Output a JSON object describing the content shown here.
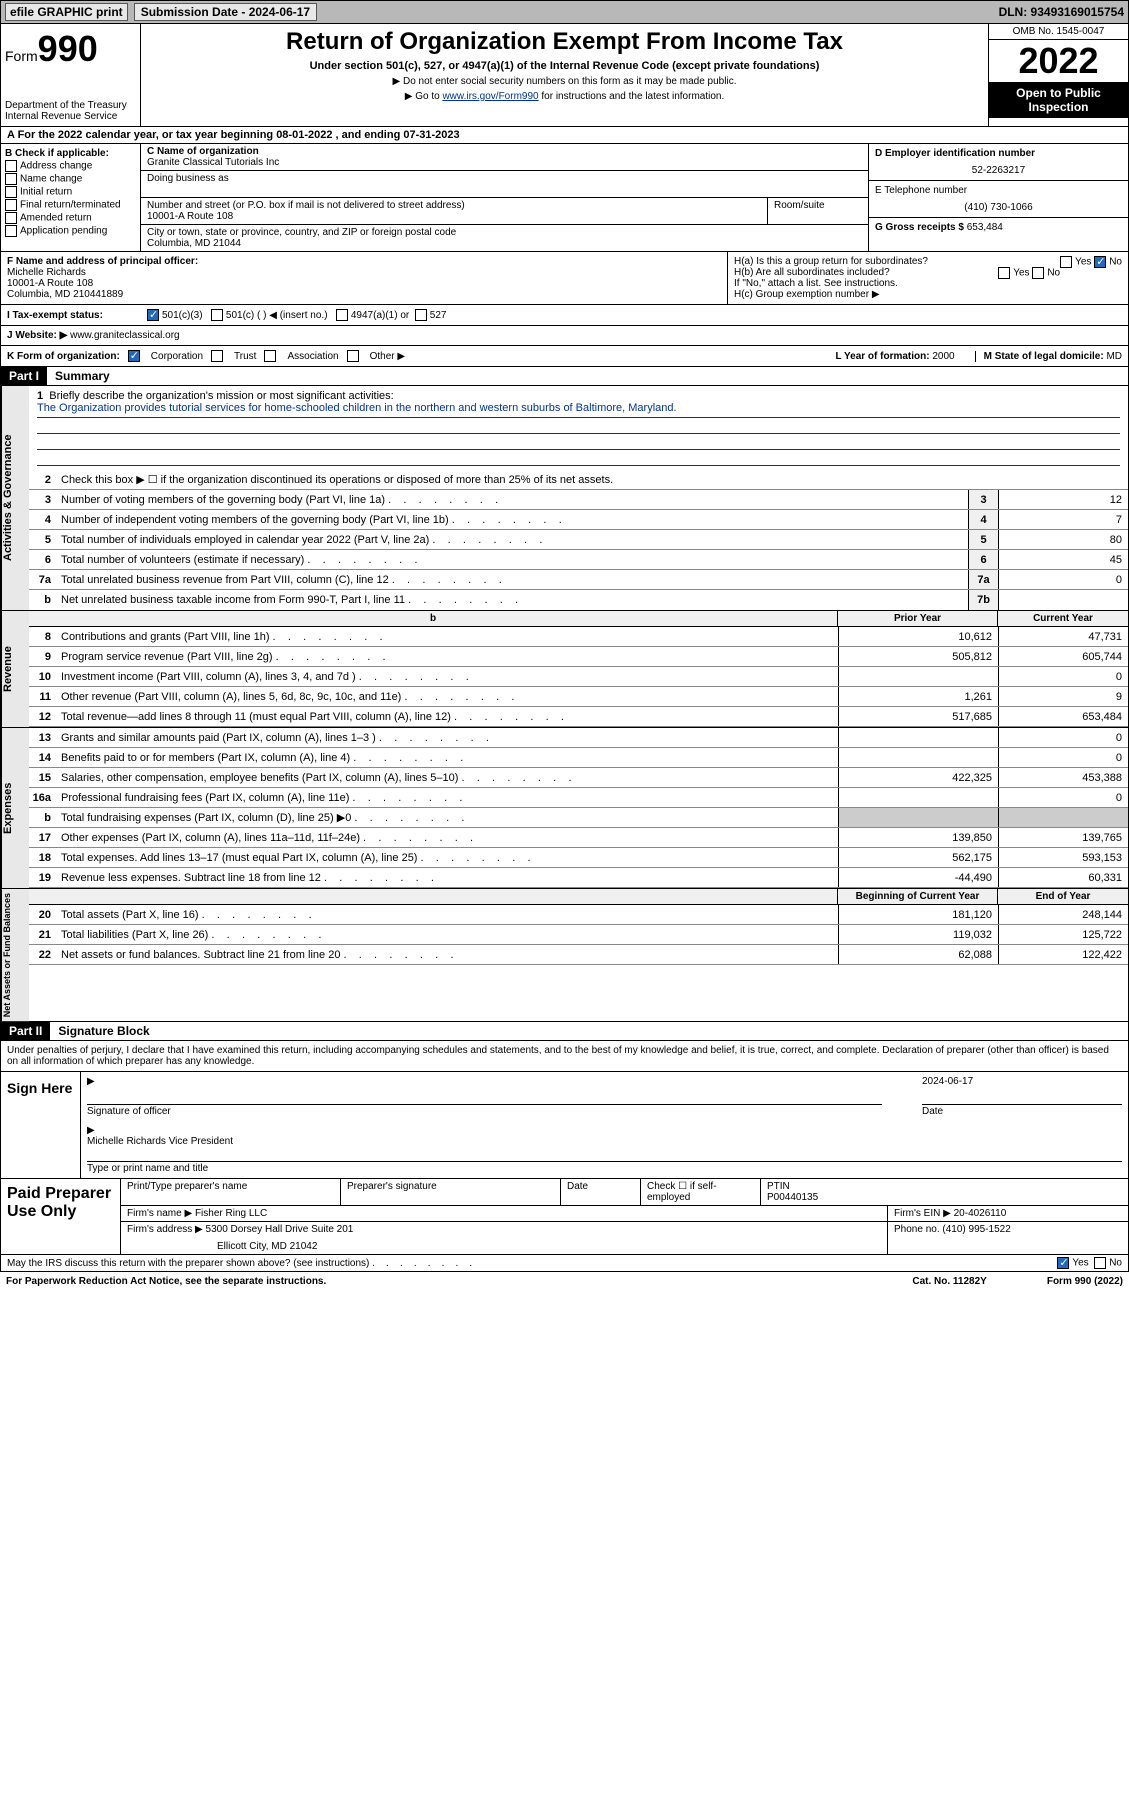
{
  "topbar": {
    "efile": "efile GRAPHIC print",
    "submission_label": "Submission Date - 2024-06-17",
    "dln": "DLN: 93493169015754"
  },
  "header": {
    "form_prefix": "Form",
    "form_num": "990",
    "dept": "Department of the Treasury Internal Revenue Service",
    "title": "Return of Organization Exempt From Income Tax",
    "subtitle": "Under section 501(c), 527, or 4947(a)(1) of the Internal Revenue Code (except private foundations)",
    "note1": "▶ Do not enter social security numbers on this form as it may be made public.",
    "note2_pre": "▶ Go to ",
    "note2_link": "www.irs.gov/Form990",
    "note2_post": " for instructions and the latest information.",
    "omb": "OMB No. 1545-0047",
    "year": "2022",
    "inspect": "Open to Public Inspection"
  },
  "row_a": "A For the 2022 calendar year, or tax year beginning 08-01-2022   , and ending 07-31-2023",
  "section_b": {
    "title": "B Check if applicable:",
    "opts": [
      "Address change",
      "Name change",
      "Initial return",
      "Final return/terminated",
      "Amended return",
      "Application pending"
    ]
  },
  "section_c": {
    "name_label": "C Name of organization",
    "name": "Granite Classical Tutorials Inc",
    "dba_label": "Doing business as",
    "addr_label": "Number and street (or P.O. box if mail is not delivered to street address)",
    "room_label": "Room/suite",
    "addr": "10001-A Route 108",
    "city_label": "City or town, state or province, country, and ZIP or foreign postal code",
    "city": "Columbia, MD  21044"
  },
  "section_d": {
    "ein_label": "D Employer identification number",
    "ein": "52-2263217",
    "tel_label": "E Telephone number",
    "tel": "(410) 730-1066",
    "gross_label": "G Gross receipts $",
    "gross": "653,484"
  },
  "section_f": {
    "label": "F Name and address of principal officer:",
    "name": "Michelle Richards",
    "addr1": "10001-A Route 108",
    "addr2": "Columbia, MD  210441889"
  },
  "section_h": {
    "ha": "H(a)  Is this a group return for subordinates?",
    "hb": "H(b)  Are all subordinates included?",
    "hnote": "If \"No,\" attach a list. See instructions.",
    "hc": "H(c)  Group exemption number ▶"
  },
  "line_i": {
    "label": "I    Tax-exempt status:",
    "opts": [
      "501(c)(3)",
      "501(c) (  ) ◀ (insert no.)",
      "4947(a)(1) or",
      "527"
    ]
  },
  "line_j": {
    "label": "J   Website: ▶",
    "val": "www.graniteclassical.org"
  },
  "line_k": {
    "label": "K Form of organization:",
    "opts": [
      "Corporation",
      "Trust",
      "Association",
      "Other ▶"
    ],
    "l_label": "L Year of formation:",
    "l_val": "2000",
    "m_label": "M State of legal domicile:",
    "m_val": "MD"
  },
  "part1": {
    "hdr": "Part I",
    "title": "Summary",
    "q1": "Briefly describe the organization's mission or most significant activities:",
    "mission": "The Organization provides tutorial services for home-schooled children in the northern and western suburbs of Baltimore, Maryland.",
    "q2": "Check this box ▶ ☐  if the organization discontinued its operations or disposed of more than 25% of its net assets.",
    "lines_gov": [
      {
        "n": "3",
        "t": "Number of voting members of the governing body (Part VI, line 1a)",
        "box": "3",
        "v": "12"
      },
      {
        "n": "4",
        "t": "Number of independent voting members of the governing body (Part VI, line 1b)",
        "box": "4",
        "v": "7"
      },
      {
        "n": "5",
        "t": "Total number of individuals employed in calendar year 2022 (Part V, line 2a)",
        "box": "5",
        "v": "80"
      },
      {
        "n": "6",
        "t": "Total number of volunteers (estimate if necessary)",
        "box": "6",
        "v": "45"
      },
      {
        "n": "7a",
        "t": "Total unrelated business revenue from Part VIII, column (C), line 12",
        "box": "7a",
        "v": "0"
      },
      {
        "n": "b",
        "t": "Net unrelated business taxable income from Form 990-T, Part I, line 11",
        "box": "7b",
        "v": ""
      }
    ],
    "col_hdr_prior": "Prior Year",
    "col_hdr_curr": "Current Year",
    "lines_rev": [
      {
        "n": "8",
        "t": "Contributions and grants (Part VIII, line 1h)",
        "p": "10,612",
        "c": "47,731"
      },
      {
        "n": "9",
        "t": "Program service revenue (Part VIII, line 2g)",
        "p": "505,812",
        "c": "605,744"
      },
      {
        "n": "10",
        "t": "Investment income (Part VIII, column (A), lines 3, 4, and 7d )",
        "p": "",
        "c": "0"
      },
      {
        "n": "11",
        "t": "Other revenue (Part VIII, column (A), lines 5, 6d, 8c, 9c, 10c, and 11e)",
        "p": "1,261",
        "c": "9"
      },
      {
        "n": "12",
        "t": "Total revenue—add lines 8 through 11 (must equal Part VIII, column (A), line 12)",
        "p": "517,685",
        "c": "653,484"
      }
    ],
    "lines_exp": [
      {
        "n": "13",
        "t": "Grants and similar amounts paid (Part IX, column (A), lines 1–3 )",
        "p": "",
        "c": "0"
      },
      {
        "n": "14",
        "t": "Benefits paid to or for members (Part IX, column (A), line 4)",
        "p": "",
        "c": "0"
      },
      {
        "n": "15",
        "t": "Salaries, other compensation, employee benefits (Part IX, column (A), lines 5–10)",
        "p": "422,325",
        "c": "453,388"
      },
      {
        "n": "16a",
        "t": "Professional fundraising fees (Part IX, column (A), line 11e)",
        "p": "",
        "c": "0"
      },
      {
        "n": "b",
        "t": "Total fundraising expenses (Part IX, column (D), line 25) ▶0",
        "p": "GRAY",
        "c": "GRAY"
      },
      {
        "n": "17",
        "t": "Other expenses (Part IX, column (A), lines 11a–11d, 11f–24e)",
        "p": "139,850",
        "c": "139,765"
      },
      {
        "n": "18",
        "t": "Total expenses. Add lines 13–17 (must equal Part IX, column (A), line 25)",
        "p": "562,175",
        "c": "593,153"
      },
      {
        "n": "19",
        "t": "Revenue less expenses. Subtract line 18 from line 12",
        "p": "-44,490",
        "c": "60,331"
      }
    ],
    "col_hdr_begin": "Beginning of Current Year",
    "col_hdr_end": "End of Year",
    "lines_net": [
      {
        "n": "20",
        "t": "Total assets (Part X, line 16)",
        "p": "181,120",
        "c": "248,144"
      },
      {
        "n": "21",
        "t": "Total liabilities (Part X, line 26)",
        "p": "119,032",
        "c": "125,722"
      },
      {
        "n": "22",
        "t": "Net assets or fund balances. Subtract line 21 from line 20",
        "p": "62,088",
        "c": "122,422"
      }
    ],
    "sidelabels": {
      "gov": "Activities & Governance",
      "rev": "Revenue",
      "exp": "Expenses",
      "net": "Net Assets or Fund Balances"
    }
  },
  "part2": {
    "hdr": "Part II",
    "title": "Signature Block",
    "penalty": "Under penalties of perjury, I declare that I have examined this return, including accompanying schedules and statements, and to the best of my knowledge and belief, it is true, correct, and complete. Declaration of preparer (other than officer) is based on all information of which preparer has any knowledge."
  },
  "sign": {
    "left": "Sign Here",
    "sig_label": "Signature of officer",
    "date_label": "Date",
    "date": "2024-06-17",
    "name": "Michelle Richards  Vice President",
    "name_label": "Type or print name and title"
  },
  "prep": {
    "left": "Paid Preparer Use Only",
    "r1c1": "Print/Type preparer's name",
    "r1c2": "Preparer's signature",
    "r1c3": "Date",
    "r1c4a": "Check ☐ if self-employed",
    "r1c4b_label": "PTIN",
    "r1c4b": "P00440135",
    "r2a": "Firm's name    ▶",
    "r2b": "Fisher Ring LLC",
    "r2c_label": "Firm's EIN ▶",
    "r2c": "20-4026110",
    "r3a": "Firm's address ▶",
    "r3b": "5300 Dorsey Hall Drive Suite 201",
    "r3b2": "Ellicott City, MD  21042",
    "r3c_label": "Phone no.",
    "r3c": "(410) 995-1522"
  },
  "footer": {
    "discuss": "May the IRS discuss this return with the preparer shown above? (see instructions)",
    "paperwork": "For Paperwork Reduction Act Notice, see the separate instructions.",
    "cat": "Cat. No. 11282Y",
    "formnum": "Form 990 (2022)"
  }
}
